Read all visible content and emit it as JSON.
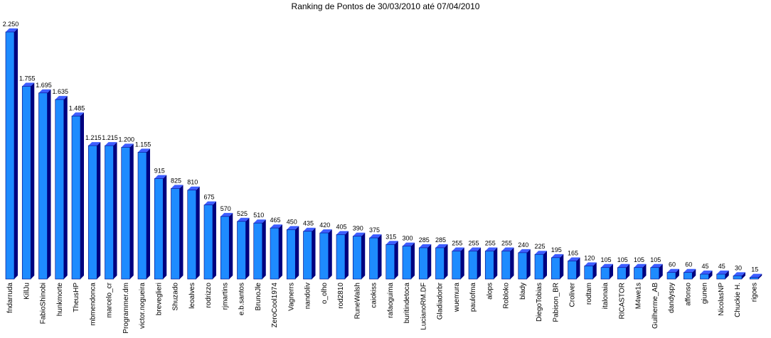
{
  "colors": {
    "bar_front": "#1E8BFF",
    "bar_top": "#3E5EFF",
    "bar_side": "#00007F"
  },
  "chart_data": {
    "type": "bar",
    "title": "Ranking de Pontos de 30/03/2010 até 07/04/2010",
    "xlabel": "",
    "ylabel": "",
    "ylim": [
      0,
      2250
    ],
    "grid": false,
    "categories": [
      "fndarruda",
      "KillJu",
      "FabioShinobi",
      "hunkmorte",
      "TheusHP",
      "mbmendonca",
      "marcelo_cr",
      "Programmer.dm",
      "victor.nogueira",
      "breveglieri",
      "Shuzado",
      "leoalves",
      "rodrizzo",
      "rjmartins",
      "e.b.santos",
      "BrunoJle",
      "ZeroCool1974",
      "Vagnerrs",
      "nandoliv",
      "o_olho",
      "rod2810",
      "RuneWalsh",
      "caiokiss",
      "rafaoguima",
      "buritindetoca",
      "LucianoRM.DF",
      "Gladiadorbr",
      "wuemura",
      "paulofma",
      "alops",
      "Robloko",
      "blady",
      "DiegoTobias",
      "Pabison_BR",
      "Croliver",
      "rodtam",
      "italonaia",
      "RICASTOR",
      "M4we1s",
      "Guilherme_AB",
      "dandyspy",
      "affonso",
      "giunen",
      "NicolasNP",
      "Chuckie H.",
      "rigoes"
    ],
    "values": [
      2250,
      1755,
      1695,
      1635,
      1485,
      1215,
      1215,
      1200,
      1155,
      915,
      825,
      810,
      675,
      570,
      525,
      510,
      465,
      450,
      435,
      420,
      405,
      390,
      375,
      315,
      300,
      285,
      285,
      255,
      255,
      255,
      255,
      240,
      225,
      195,
      165,
      120,
      105,
      105,
      105,
      105,
      60,
      60,
      45,
      45,
      30,
      15
    ],
    "value_labels": [
      "2.250",
      "1.755",
      "1.695",
      "1.635",
      "1.485",
      "1.215",
      "1.215",
      "1.200",
      "1.155",
      "915",
      "825",
      "810",
      "675",
      "570",
      "525",
      "510",
      "465",
      "450",
      "435",
      "420",
      "405",
      "390",
      "375",
      "315",
      "300",
      "285",
      "285",
      "255",
      "255",
      "255",
      "255",
      "240",
      "225",
      "195",
      "165",
      "120",
      "105",
      "105",
      "105",
      "105",
      "60",
      "60",
      "45",
      "45",
      "30",
      "15"
    ]
  }
}
